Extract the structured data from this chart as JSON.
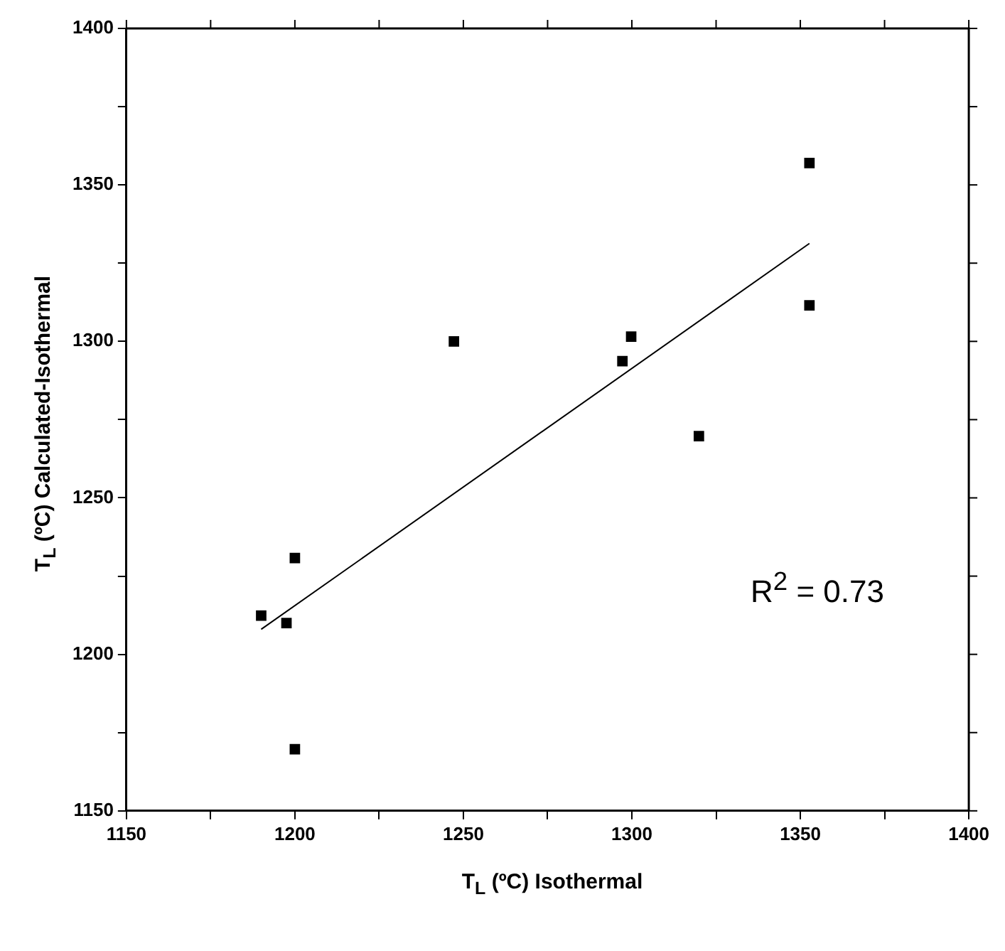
{
  "chart_data": {
    "type": "scatter",
    "xlabel": "T$_{L}$ (ºC) Isothermal",
    "ylabel": "T$_{L}$ (ºC) Calculated-Isothermal",
    "xlim": [
      1150,
      1400
    ],
    "ylim": [
      1150,
      1400
    ],
    "xticks": [
      1150,
      {
        "value": 1175,
        "label": null
      },
      1200,
      {
        "value": 1225,
        "label": null
      },
      1250,
      {
        "value": 1275,
        "label": null
      },
      1300,
      {
        "value": 1325,
        "label": null
      },
      1350,
      {
        "value": 1375,
        "label": null
      },
      1400
    ],
    "yticks": [
      1150,
      {
        "value": 1175,
        "label": null
      },
      1200,
      {
        "value": 1225,
        "label": null
      },
      1250,
      {
        "value": 1275,
        "label": null
      },
      1300,
      {
        "value": 1325,
        "label": null
      },
      1350,
      {
        "value": 1375,
        "label": null
      },
      1400
    ],
    "grid": false,
    "legend": false,
    "marker": "square",
    "annotations": [
      "R$^{2}$ = 0.73"
    ],
    "series": [
      {
        "color": "#000000",
        "x": [
          1352.7,
          1352.7,
          1247.2,
          1299.8,
          1297.2,
          1319.9,
          1200,
          1190,
          1197.5,
          1200
        ],
        "values": [
          1357,
          1311.5,
          1300,
          1301.5,
          1293.7,
          1269.7,
          1230.8,
          1212.4,
          1210,
          1169.7
        ]
      },
      {
        "type": "line",
        "color": "#000000",
        "marker": "none",
        "x": [
          1190,
          1352.7
        ],
        "values": [
          1208,
          1331.3
        ]
      }
    ]
  }
}
